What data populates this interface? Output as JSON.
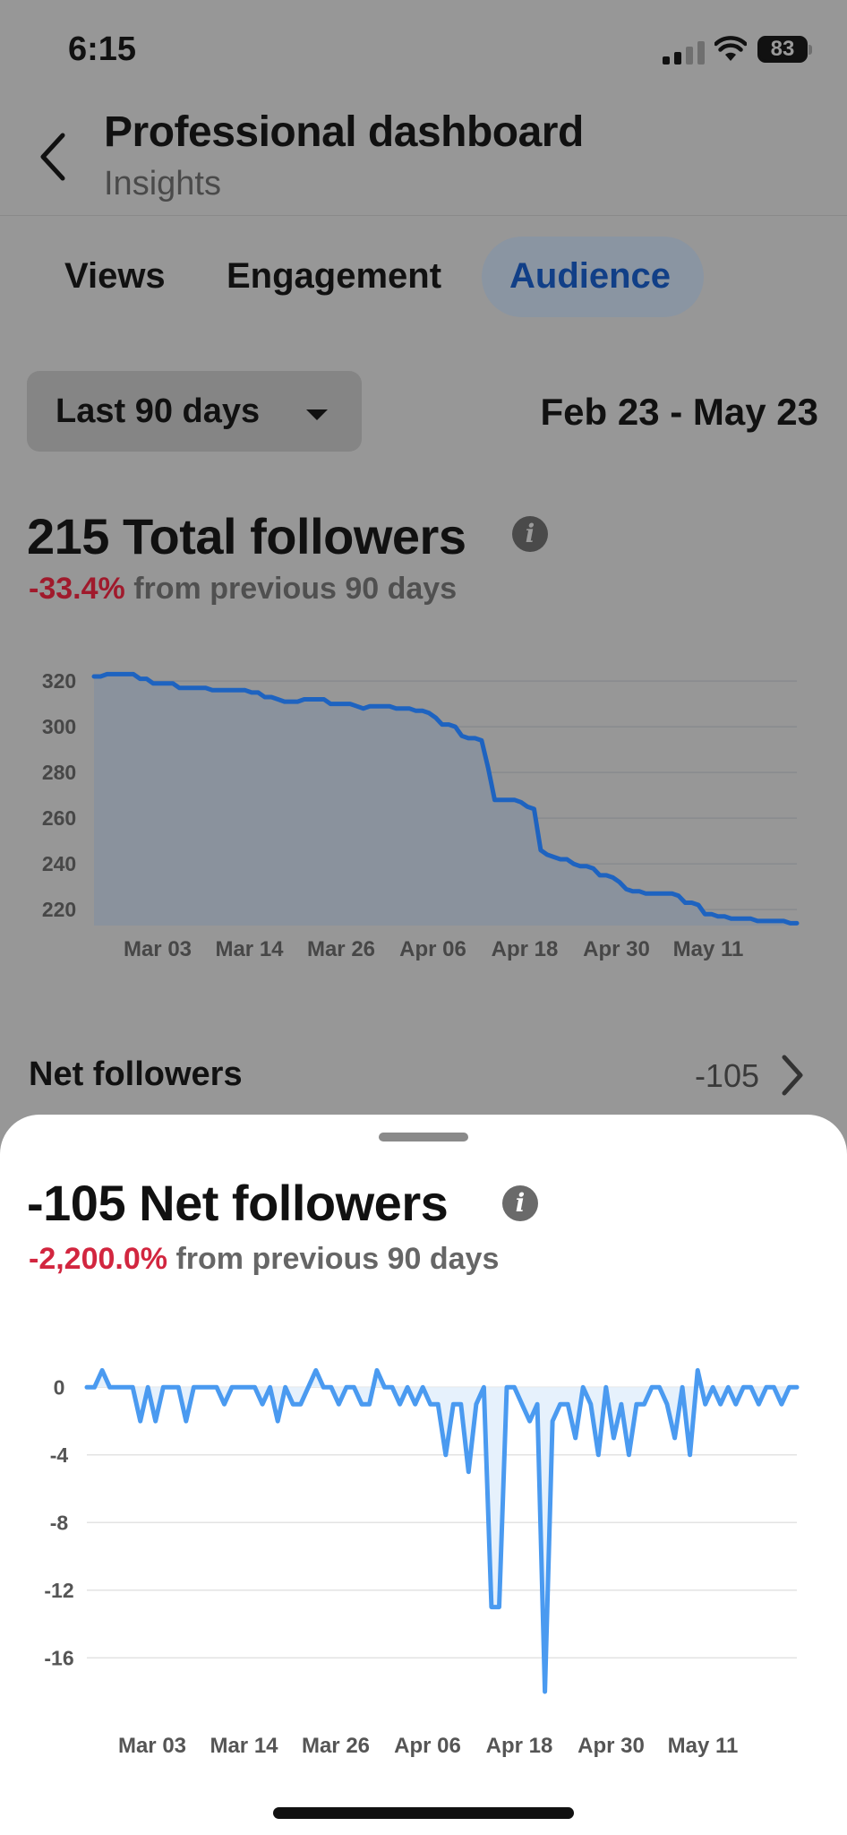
{
  "status_bar": {
    "time": "6:15",
    "battery": "83"
  },
  "header": {
    "title": "Professional dashboard",
    "subtitle": "Insights"
  },
  "tabs": [
    {
      "label": "Views",
      "active": false
    },
    {
      "label": "Engagement",
      "active": false
    },
    {
      "label": "Audience",
      "active": true
    }
  ],
  "filter": {
    "range_label": "Last 90 days",
    "date_range": "Feb 23 - May 23"
  },
  "total_followers": {
    "headline": "215 Total followers",
    "change_value": "-33.4%",
    "change_text": "from previous 90 days"
  },
  "net_followers_row": {
    "label": "Net followers",
    "value": "-105"
  },
  "sheet": {
    "headline": "-105 Net followers",
    "change_value": "-2,200.0%",
    "change_text": "from previous 90 days"
  },
  "colors": {
    "accent": "#1e63c0",
    "accent_light": "#4a9af0",
    "negative": "#d2263f"
  },
  "chart_data": [
    {
      "type": "area",
      "x_labels": [
        "Mar 03",
        "Mar 14",
        "Mar 26",
        "Apr 06",
        "Apr 18",
        "Apr 30",
        "May 11"
      ],
      "y_ticks": [
        320,
        300,
        280,
        260,
        240,
        220
      ],
      "ylim": [
        213,
        322
      ],
      "grid": true,
      "series": [
        {
          "values": [
            322,
            322,
            323,
            323,
            323,
            323,
            323,
            321,
            321,
            319,
            319,
            319,
            319,
            317,
            317,
            317,
            317,
            317,
            316,
            316,
            316,
            316,
            316,
            316,
            315,
            315,
            313,
            313,
            312,
            311,
            311,
            311,
            312,
            312,
            312,
            312,
            310,
            310,
            310,
            310,
            309,
            308,
            309,
            309,
            309,
            309,
            308,
            308,
            308,
            307,
            307,
            306,
            304,
            301,
            301,
            300,
            296,
            295,
            295,
            294,
            282,
            268,
            268,
            268,
            268,
            267,
            265,
            264,
            246,
            244,
            243,
            242,
            242,
            240,
            239,
            239,
            238,
            235,
            235,
            234,
            232,
            229,
            228,
            228,
            227,
            227,
            227,
            227,
            227,
            226,
            223,
            223,
            222,
            218,
            218,
            217,
            217,
            216,
            216,
            216,
            216,
            215,
            215,
            215,
            215,
            215,
            214,
            214
          ]
        }
      ]
    },
    {
      "type": "area",
      "x_labels": [
        "Mar 03",
        "Mar 14",
        "Mar 26",
        "Apr 06",
        "Apr 18",
        "Apr 30",
        "May 11"
      ],
      "y_ticks": [
        0,
        -4,
        -8,
        -12,
        -16
      ],
      "ylim": [
        -18,
        1.5
      ],
      "grid": true,
      "series": [
        {
          "values": [
            0,
            0,
            1,
            0,
            0,
            0,
            0,
            -2,
            0,
            -2,
            0,
            0,
            0,
            -2,
            0,
            0,
            0,
            0,
            -1,
            0,
            0,
            0,
            0,
            -1,
            0,
            -2,
            0,
            -1,
            -1,
            0,
            1,
            0,
            0,
            -1,
            0,
            0,
            -1,
            -1,
            1,
            0,
            0,
            -1,
            0,
            -1,
            0,
            -1,
            -1,
            -4,
            -1,
            -1,
            -5,
            -1,
            0,
            -13,
            -13,
            0,
            0,
            -1,
            -2,
            -1,
            -18,
            -2,
            -1,
            -1,
            -3,
            0,
            -1,
            -4,
            0,
            -3,
            -1,
            -4,
            -1,
            -1,
            0,
            0,
            -1,
            -3,
            0,
            -4,
            1,
            -1,
            0,
            -1,
            0,
            -1,
            0,
            0,
            -1,
            0,
            0,
            -1,
            0,
            0
          ]
        }
      ]
    }
  ]
}
